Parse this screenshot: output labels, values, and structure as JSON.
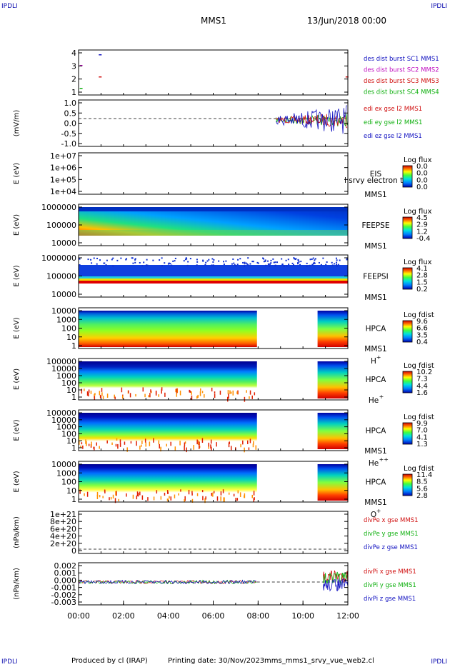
{
  "corner_label": "IPDLI",
  "header": {
    "spacecraft": "MMS1",
    "date_time": "13/Jun/2018 00:00"
  },
  "footer": {
    "produced_by": "Produced by cl (IRAP)",
    "printing_date": "Printing date: 30/Nov/2023",
    "filename": "mms_mms1_srvy_vue_web2.cl"
  },
  "chart_data": {
    "type": "multi-panel time series and spectrogram stack",
    "x_ticks": [
      "00:00",
      "02:00",
      "04:00",
      "06:00",
      "08:00",
      "10:00",
      "12:00"
    ],
    "x_range_hours": [
      0,
      12
    ],
    "panels": [
      {
        "id": "burst",
        "type": "event-markers",
        "y_ticks": [
          "4",
          "3",
          "2",
          "1"
        ],
        "legend": [
          {
            "text": "des dist burst SC1 MMS1",
            "color": "#1010c0"
          },
          {
            "text": "des dist burst SC2 MMS2",
            "color": "#c010c0"
          },
          {
            "text": "des dist burst SC3 MMS3",
            "color": "#d01010"
          },
          {
            "text": "des dist burst SC4 MMS4",
            "color": "#10b010"
          }
        ]
      },
      {
        "id": "edi",
        "type": "line",
        "ylabel": "(mV/m)",
        "y_ticks": [
          "1.0",
          "0.5",
          "0.0",
          "-0.5",
          "-1.0"
        ],
        "legend": [
          {
            "text": "edi ex gse l2 MMS1",
            "color": "#d01010"
          },
          {
            "text": "edi ey gse l2 MMS1",
            "color": "#10b010"
          },
          {
            "text": "edi ez gse l2 MMS1",
            "color": "#1010c0"
          }
        ],
        "data_coverage_hours": [
          8.8,
          12.0
        ]
      },
      {
        "id": "eis",
        "type": "heatmap",
        "ylabel": "E (eV)",
        "y_ticks": [
          "1e+07",
          "1e+06",
          "1e+05",
          "1e+04"
        ],
        "instrument": "EIS",
        "overlay_text": "l srvy electron to",
        "spacecraft": "MMS1",
        "colorbar_title": "Log flux",
        "colorbar_ticks": [
          "0.0",
          "0.0",
          "0.0",
          "0.0"
        ]
      },
      {
        "id": "feepse",
        "type": "heatmap",
        "ylabel": "E (eV)",
        "y_ticks": [
          "1000000",
          "100000",
          "10000"
        ],
        "instrument": "FEEPSE",
        "spacecraft": "MMS1",
        "colorbar_title": "Log flux",
        "colorbar_ticks": [
          "4.5",
          "2.9",
          "1.2",
          "-0.4"
        ]
      },
      {
        "id": "feepsi",
        "type": "heatmap",
        "ylabel": "E (eV)",
        "y_ticks": [
          "1000000",
          "100000",
          "10000"
        ],
        "instrument": "FEEPSI",
        "spacecraft": "MMS1",
        "colorbar_title": "Log flux",
        "colorbar_ticks": [
          "4.1",
          "2.8",
          "1.5",
          "0.2"
        ]
      },
      {
        "id": "hpca_h",
        "type": "heatmap",
        "ylabel": "E (eV)",
        "y_ticks": [
          "10000",
          "1000",
          "100",
          "10",
          "1"
        ],
        "instrument": "HPCA",
        "spacecraft": "MMS1",
        "species": "H",
        "species_sup": "+",
        "colorbar_title": "Log fdist",
        "colorbar_ticks": [
          "9.6",
          "6.6",
          "3.5",
          "0.4"
        ],
        "data_gap_hours": [
          7.95,
          10.65
        ]
      },
      {
        "id": "hpca_he",
        "type": "heatmap",
        "ylabel": "E (eV)",
        "y_ticks": [
          "100000",
          "10000",
          "1000",
          "100",
          "10",
          "1"
        ],
        "instrument": "HPCA",
        "species": "He",
        "species_sup": "+",
        "colorbar_title": "Log fdist",
        "colorbar_ticks": [
          "10.2",
          "7.3",
          "4.4",
          "1.6"
        ],
        "data_gap_hours": [
          7.95,
          10.65
        ]
      },
      {
        "id": "hpca_hepp",
        "type": "heatmap",
        "ylabel": "E (eV)",
        "y_ticks": [
          "100000",
          "10000",
          "1000",
          "100",
          "10",
          "1"
        ],
        "instrument": "HPCA",
        "spacecraft": "MMS1",
        "species": "He",
        "species_sup": "++",
        "colorbar_title": "Log fdist",
        "colorbar_ticks": [
          "9.9",
          "7.0",
          "4.1",
          "1.3"
        ],
        "data_gap_hours": [
          7.95,
          10.65
        ]
      },
      {
        "id": "hpca_o",
        "type": "heatmap",
        "ylabel": "E (eV)",
        "y_ticks": [
          "10000",
          "1000",
          "100",
          "10",
          "1"
        ],
        "instrument": "HPCA",
        "spacecraft": "MMS1",
        "species": "O",
        "species_sup": "+",
        "colorbar_title": "Log fdist",
        "colorbar_ticks": [
          "11.4",
          "8.5",
          "5.6",
          "2.8"
        ],
        "data_gap_hours": [
          7.95,
          10.65
        ]
      },
      {
        "id": "divpe",
        "type": "line",
        "ylabel": "(nPa/km)",
        "y_ticks": [
          "1e+21",
          "8e+20",
          "6e+20",
          "4e+20",
          "2e+20",
          "0"
        ],
        "legend": [
          {
            "text": "divPe x gse MMS1",
            "color": "#d01010"
          },
          {
            "text": "divPe y gse MMS1",
            "color": "#10b010"
          },
          {
            "text": "divPe z gse MMS1",
            "color": "#1010c0"
          }
        ]
      },
      {
        "id": "divpi",
        "type": "line",
        "ylabel": "(nPa/km)",
        "y_ticks": [
          "0.002",
          "0.001",
          "0.000",
          "-0.001",
          "-0.002",
          "-0.003"
        ],
        "legend": [
          {
            "text": "divPi x gse MMS1",
            "color": "#d01010"
          },
          {
            "text": "divPi y gse MMS1",
            "color": "#10b010"
          },
          {
            "text": "divPi z gse MMS1",
            "color": "#1010c0"
          }
        ],
        "data_coverage_hours": [
          0,
          7.95
        ],
        "burst_hours": [
          10.9,
          12.0
        ]
      }
    ]
  }
}
